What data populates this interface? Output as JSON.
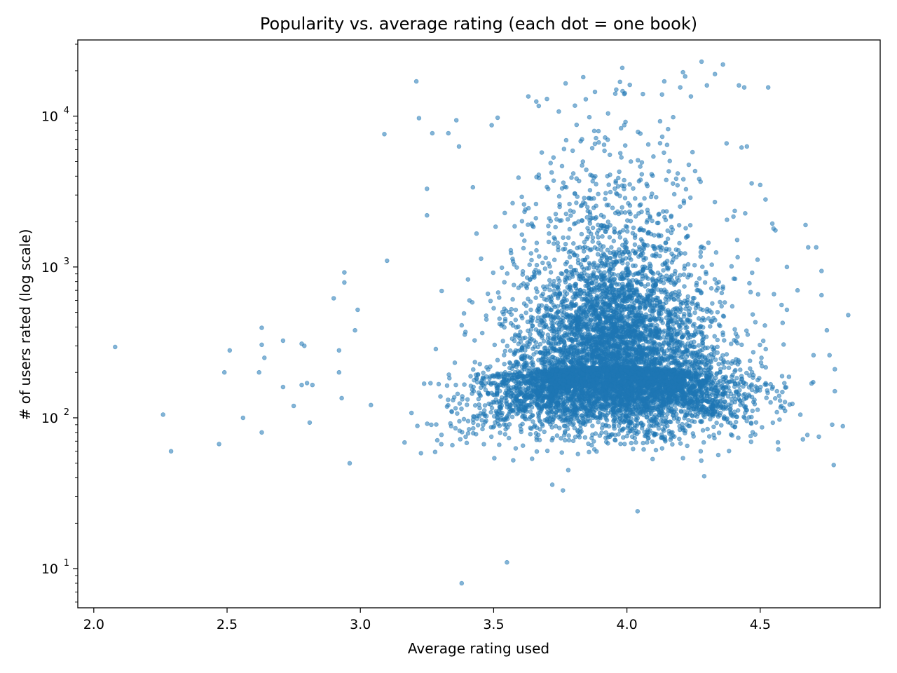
{
  "chart_data": {
    "type": "scatter",
    "title": "Popularity vs. average rating (each dot = one book)",
    "xlabel": "Average rating used",
    "ylabel": "# of users rated (log scale)",
    "x_scale": "linear",
    "y_scale": "log",
    "xlim": [
      1.94,
      4.95
    ],
    "ylim": [
      5.5,
      32000
    ],
    "xticks": [
      2.0,
      2.5,
      3.0,
      3.5,
      4.0,
      4.5
    ],
    "xtick_labels": [
      "2.0",
      "2.5",
      "3.0",
      "3.5",
      "4.0",
      "4.5"
    ],
    "yticks": [
      10,
      100,
      1000,
      10000
    ],
    "ytick_labels": [
      {
        "base": "10",
        "exp": "1"
      },
      {
        "base": "10",
        "exp": "2"
      },
      {
        "base": "10",
        "exp": "3"
      },
      {
        "base": "10",
        "exp": "4"
      }
    ],
    "grid": false,
    "marker_color": "#1f77b4",
    "marker_alpha": 0.55,
    "cluster": {
      "approx_point_count": 7800,
      "center_rating": 3.95,
      "rating_sd": 0.22,
      "center_users": 220,
      "note_points_listed_below_are_sparse_outliers": true
    },
    "outliers": [
      [
        2.08,
        295
      ],
      [
        2.26,
        105
      ],
      [
        2.29,
        60
      ],
      [
        2.47,
        67
      ],
      [
        2.49,
        200
      ],
      [
        2.51,
        280
      ],
      [
        2.56,
        100
      ],
      [
        2.62,
        200
      ],
      [
        2.63,
        395
      ],
      [
        2.63,
        305
      ],
      [
        2.64,
        250
      ],
      [
        2.63,
        80
      ],
      [
        2.71,
        325
      ],
      [
        2.71,
        160
      ],
      [
        2.75,
        120
      ],
      [
        2.78,
        310
      ],
      [
        2.79,
        300
      ],
      [
        2.78,
        165
      ],
      [
        2.8,
        170
      ],
      [
        2.81,
        93
      ],
      [
        2.82,
        165
      ],
      [
        2.9,
        620
      ],
      [
        2.92,
        200
      ],
      [
        2.92,
        280
      ],
      [
        2.93,
        135
      ],
      [
        2.94,
        920
      ],
      [
        2.94,
        790
      ],
      [
        2.96,
        50
      ],
      [
        2.98,
        380
      ],
      [
        2.99,
        520
      ],
      [
        3.09,
        7600
      ],
      [
        3.1,
        1100
      ],
      [
        3.21,
        17000
      ],
      [
        3.22,
        9700
      ],
      [
        3.25,
        3300
      ],
      [
        3.25,
        2200
      ],
      [
        3.27,
        7700
      ],
      [
        3.33,
        7700
      ],
      [
        3.36,
        9400
      ],
      [
        3.37,
        6300
      ],
      [
        3.38,
        8
      ],
      [
        3.55,
        11
      ],
      [
        3.72,
        36
      ],
      [
        3.76,
        33
      ],
      [
        3.78,
        45
      ],
      [
        4.04,
        24
      ],
      [
        4.29,
        41
      ],
      [
        4.77,
        90
      ],
      [
        4.83,
        480
      ],
      [
        4.81,
        88
      ],
      [
        4.73,
        650
      ],
      [
        4.72,
        75
      ],
      [
        4.67,
        1900
      ],
      [
        4.66,
        72
      ],
      [
        4.68,
        1350
      ],
      [
        4.71,
        1350
      ],
      [
        4.7,
        260
      ],
      [
        4.73,
        940
      ],
      [
        4.75,
        380
      ],
      [
        4.76,
        260
      ],
      [
        4.78,
        210
      ],
      [
        4.78,
        150
      ],
      [
        4.28,
        23000
      ],
      [
        4.33,
        19000
      ],
      [
        4.36,
        22000
      ],
      [
        4.42,
        16000
      ],
      [
        4.44,
        15500
      ],
      [
        4.53,
        15500
      ],
      [
        4.3,
        16000
      ],
      [
        4.14,
        17000
      ],
      [
        4.2,
        15500
      ],
      [
        4.24,
        13500
      ],
      [
        4.06,
        14000
      ],
      [
        3.99,
        14000
      ],
      [
        3.96,
        15000
      ],
      [
        3.88,
        14500
      ],
      [
        3.77,
        16500
      ],
      [
        3.63,
        13500
      ],
      [
        3.66,
        12500
      ],
      [
        3.7,
        13000
      ],
      [
        4.45,
        6300
      ],
      [
        4.43,
        6200
      ],
      [
        4.5,
        3500
      ],
      [
        4.52,
        2800
      ],
      [
        4.55,
        1800
      ],
      [
        4.6,
        1000
      ],
      [
        4.64,
        700
      ],
      [
        4.6,
        520
      ],
      [
        4.58,
        560
      ]
    ]
  }
}
